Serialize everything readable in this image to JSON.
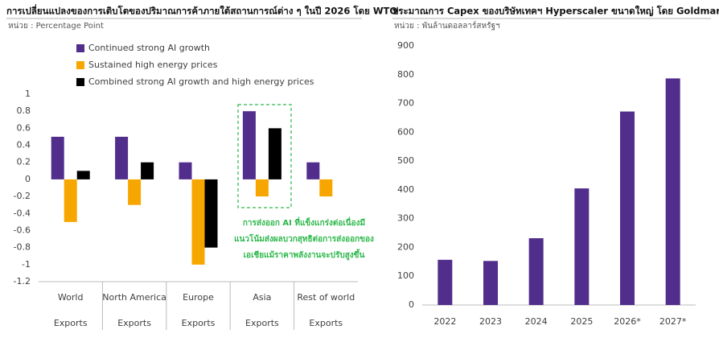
{
  "chart_data": [
    {
      "type": "bar",
      "title": "การเปลี่ยนแปลงของการเติบโตของปริมาณการค้าภายใต้สถานการณ์ต่าง ๆ ในปี 2026 โดย WTO",
      "subtitle": "หน่วย : Percentage Point",
      "categories": [
        [
          "World",
          "Exports"
        ],
        [
          "North America",
          "Exports"
        ],
        [
          "Europe",
          "Exports"
        ],
        [
          "Asia",
          "Exports"
        ],
        [
          "Rest of world",
          "Exports"
        ]
      ],
      "series": [
        {
          "name": "Continued strong AI growth",
          "color": "#512d8c",
          "values": [
            0.5,
            0.5,
            0.2,
            0.8,
            0.2
          ]
        },
        {
          "name": "Sustained high energy prices",
          "color": "#f7a600",
          "values": [
            -0.5,
            -0.3,
            -1.0,
            -0.2,
            -0.2
          ]
        },
        {
          "name": "Combined strong AI growth and high energy prices",
          "color": "#000000",
          "values": [
            0.1,
            0.2,
            -0.8,
            0.6,
            0
          ]
        }
      ],
      "ylim": [
        -1.2,
        1
      ],
      "yticks": [
        1,
        0.8,
        0.6,
        0.4,
        0.2,
        0,
        -0.2,
        -0.4,
        -0.6,
        -0.8,
        -1,
        -1.2
      ],
      "annotation": [
        "การส่งออก AI ที่แข็งแกร่งต่อเนื่องมี",
        "แนวโน้มส่งผลบวกสุทธิต่อการส่งออกของ",
        "เอเชียแม้ราคาพลังงานจะปรับสูงขึ้น"
      ]
    },
    {
      "type": "bar",
      "title": "ประมาณการ Capex ของบริษัทเทคฯ Hyperscaler ขนาดใหญ่ โดย Goldman Sach",
      "subtitle": "หน่วย : พันล้านดอลลาร์สหรัฐฯ",
      "categories": [
        [
          "2022"
        ],
        [
          "2023"
        ],
        [
          "2024"
        ],
        [
          "2025"
        ],
        [
          "2026*"
        ],
        [
          "2027*"
        ]
      ],
      "series": [
        {
          "color": "#512d8c",
          "values": [
            157,
            153,
            232,
            405,
            672,
            787
          ]
        }
      ],
      "ylim": [
        0,
        900
      ],
      "yticks": [
        0,
        100,
        200,
        300,
        400,
        500,
        600,
        700,
        800,
        900
      ]
    }
  ]
}
